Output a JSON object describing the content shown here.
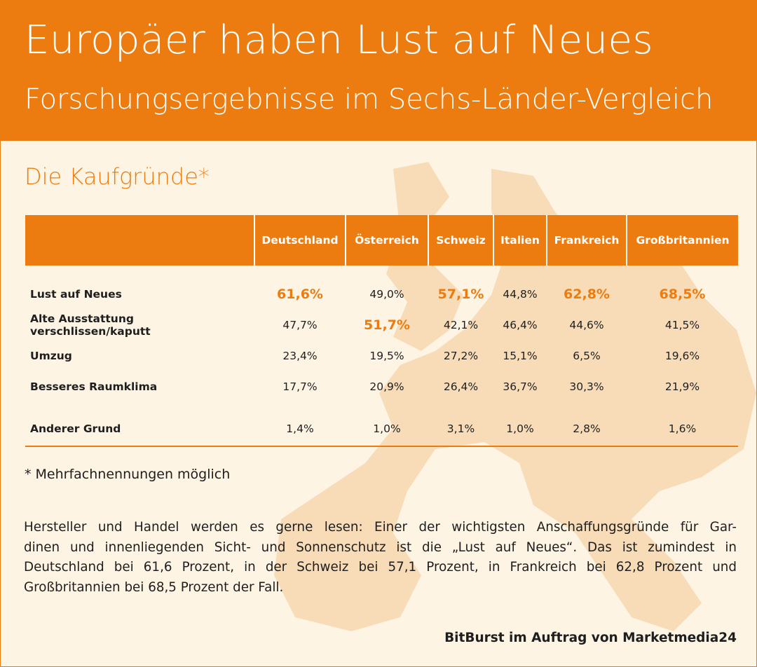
{
  "header": {
    "title": "Europäer haben Lust auf Neues",
    "subtitle": "Forschungsergebnisse im Sechs-Länder-Vergleich"
  },
  "section_title": "Die Kaufgründe*",
  "table": {
    "columns": [
      "Deutschland",
      "Österreich",
      "Schweiz",
      "Italien",
      "Frankreich",
      "Großbritannien"
    ],
    "rows": [
      {
        "label": "Lust auf Neues",
        "values": [
          "61,6%",
          "49,0%",
          "57,1%",
          "44,8%",
          "62,8%",
          "68,5%"
        ]
      },
      {
        "label": "Alte Ausstattung verschlissen/kaputt",
        "values": [
          "47,7%",
          "51,7%",
          "42,1%",
          "46,4%",
          "44,6%",
          "41,5%"
        ]
      },
      {
        "label": "Umzug",
        "values": [
          "23,4%",
          "19,5%",
          "27,2%",
          "15,1%",
          "6,5%",
          "19,6%"
        ]
      },
      {
        "label": "Besseres Raumklima",
        "values": [
          "17,7%",
          "20,9%",
          "26,4%",
          "36,7%",
          "30,3%",
          "21,9%"
        ]
      },
      {
        "label": "Anderer Grund",
        "values": [
          "1,4%",
          "1,0%",
          "3,1%",
          "1,0%",
          "2,8%",
          "1,6%"
        ]
      }
    ]
  },
  "footnote": "* Mehrfachnennungen möglich",
  "paragraph": [
    "Hersteller und Handel werden es gerne lesen: Einer der wichtigsten Anschaffungsgründe für Gar-",
    "dinen und innenliegenden Sicht- und Sonnenschutz ist die „Lust auf Neues“. Das ist zumindest in",
    "Deutschland bei 61,6 Prozent, in der Schweiz bei 57,1 Prozent, in Frankreich bei 62,8 Prozent und",
    "Großbritannien bei 68,5 Prozent der Fall."
  ],
  "source": "BitBurst im Auftrag von Marketmedia24"
}
